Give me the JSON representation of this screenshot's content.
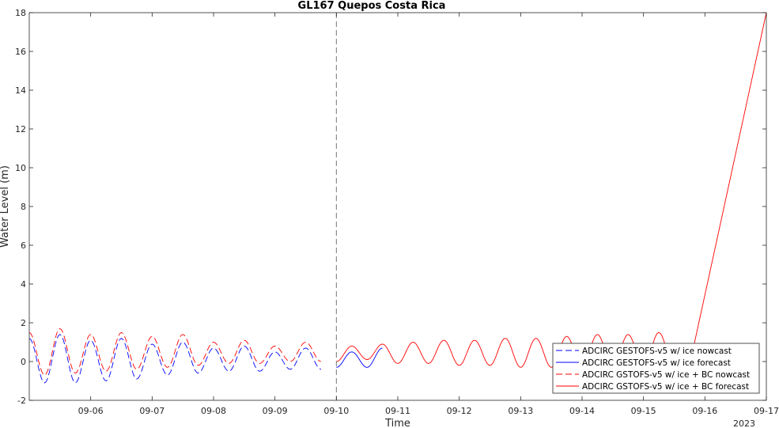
{
  "chart_data": {
    "type": "line",
    "title": "GL167 Quepos Costa Rica",
    "xlabel": "Time",
    "ylabel": "Water Level (m)",
    "year_label": "2023",
    "xlim": [
      "2023-09-05",
      "2023-09-17"
    ],
    "ylim": [
      -2,
      18
    ],
    "x_ticks": [
      "09-06",
      "09-07",
      "09-08",
      "09-09",
      "09-10",
      "09-11",
      "09-12",
      "09-13",
      "09-14",
      "09-15",
      "09-16",
      "09-17"
    ],
    "y_ticks": [
      -2,
      0,
      2,
      4,
      6,
      8,
      10,
      12,
      14,
      16,
      18
    ],
    "grid": false,
    "legend_position": "bottom-right",
    "nowcast_forecast_boundary": "2023-09-10 00:00",
    "series": [
      {
        "name": "ADCIRC GESTOFS-v5 w/ ice nowcast",
        "color": "#0000ff",
        "dash": "dashed",
        "points": [
          [
            "2023-09-05 00:00",
            1.2
          ],
          [
            "2023-09-05 06:00",
            -1.1
          ],
          [
            "2023-09-05 12:00",
            1.4
          ],
          [
            "2023-09-05 18:00",
            -1.1
          ],
          [
            "2023-09-06 00:00",
            1.1
          ],
          [
            "2023-09-06 06:00",
            -1.0
          ],
          [
            "2023-09-06 12:00",
            1.2
          ],
          [
            "2023-09-06 18:00",
            -0.9
          ],
          [
            "2023-09-07 00:00",
            0.9
          ],
          [
            "2023-09-07 06:00",
            -0.7
          ],
          [
            "2023-09-07 12:00",
            1.0
          ],
          [
            "2023-09-07 18:00",
            -0.6
          ],
          [
            "2023-09-08 00:00",
            0.7
          ],
          [
            "2023-09-08 06:00",
            -0.5
          ],
          [
            "2023-09-08 12:00",
            0.8
          ],
          [
            "2023-09-08 18:00",
            -0.5
          ],
          [
            "2023-09-09 00:00",
            0.5
          ],
          [
            "2023-09-09 06:00",
            -0.4
          ],
          [
            "2023-09-09 12:00",
            0.7
          ],
          [
            "2023-09-09 18:00",
            -0.4
          ]
        ]
      },
      {
        "name": "ADCIRC GESTOFS-v5 w/ ice forecast",
        "color": "#0000ff",
        "dash": "solid",
        "points": [
          [
            "2023-09-10 00:00",
            -0.3
          ],
          [
            "2023-09-10 06:00",
            0.5
          ],
          [
            "2023-09-10 12:00",
            -0.3
          ],
          [
            "2023-09-10 18:00",
            0.7
          ]
        ]
      },
      {
        "name": "ADCIRC GSTOFS-v5 w/ ice + BC nowcast",
        "color": "#ff0000",
        "dash": "dashed",
        "points": [
          [
            "2023-09-05 00:00",
            1.5
          ],
          [
            "2023-09-05 06:00",
            -0.7
          ],
          [
            "2023-09-05 12:00",
            1.7
          ],
          [
            "2023-09-05 18:00",
            -0.6
          ],
          [
            "2023-09-06 00:00",
            1.4
          ],
          [
            "2023-09-06 06:00",
            -0.5
          ],
          [
            "2023-09-06 12:00",
            1.5
          ],
          [
            "2023-09-06 18:00",
            -0.4
          ],
          [
            "2023-09-07 00:00",
            1.3
          ],
          [
            "2023-09-07 06:00",
            -0.3
          ],
          [
            "2023-09-07 12:00",
            1.4
          ],
          [
            "2023-09-07 18:00",
            -0.2
          ],
          [
            "2023-09-08 00:00",
            1.0
          ],
          [
            "2023-09-08 06:00",
            -0.1
          ],
          [
            "2023-09-08 12:00",
            1.1
          ],
          [
            "2023-09-08 18:00",
            -0.1
          ],
          [
            "2023-09-09 00:00",
            0.8
          ],
          [
            "2023-09-09 06:00",
            0.0
          ],
          [
            "2023-09-09 12:00",
            1.0
          ],
          [
            "2023-09-09 18:00",
            0.0
          ]
        ]
      },
      {
        "name": "ADCIRC GSTOFS-v5 w/ ice + BC forecast",
        "color": "#ff0000",
        "dash": "solid",
        "points": [
          [
            "2023-09-10 00:00",
            0.0
          ],
          [
            "2023-09-10 06:00",
            0.8
          ],
          [
            "2023-09-10 12:00",
            0.1
          ],
          [
            "2023-09-10 18:00",
            0.9
          ],
          [
            "2023-09-11 00:00",
            -0.1
          ],
          [
            "2023-09-11 06:00",
            1.0
          ],
          [
            "2023-09-11 12:00",
            -0.1
          ],
          [
            "2023-09-11 18:00",
            1.1
          ],
          [
            "2023-09-12 00:00",
            -0.2
          ],
          [
            "2023-09-12 06:00",
            1.1
          ],
          [
            "2023-09-12 12:00",
            -0.2
          ],
          [
            "2023-09-12 18:00",
            1.2
          ],
          [
            "2023-09-13 00:00",
            -0.3
          ],
          [
            "2023-09-13 06:00",
            1.2
          ],
          [
            "2023-09-13 12:00",
            -0.3
          ],
          [
            "2023-09-13 18:00",
            1.3
          ],
          [
            "2023-09-14 00:00",
            -0.3
          ],
          [
            "2023-09-14 06:00",
            1.4
          ],
          [
            "2023-09-14 12:00",
            -0.3
          ],
          [
            "2023-09-14 18:00",
            1.4
          ],
          [
            "2023-09-15 00:00",
            -0.3
          ],
          [
            "2023-09-15 06:00",
            1.5
          ],
          [
            "2023-09-15 12:00",
            -0.3
          ],
          [
            "2023-09-15 18:00",
            -0.2
          ],
          [
            "2023-09-17 00:00",
            18.0
          ]
        ]
      }
    ]
  }
}
